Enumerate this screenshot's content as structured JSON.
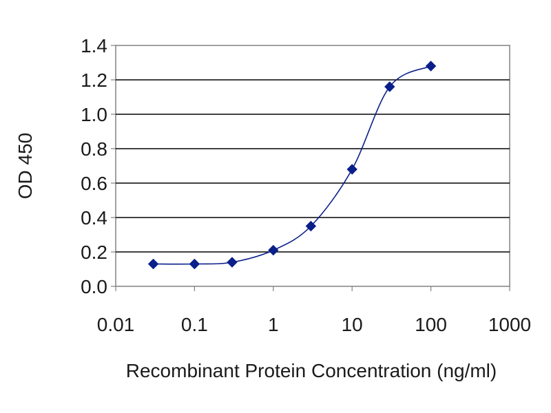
{
  "chart_data": {
    "type": "line",
    "title": "",
    "xlabel": "Recombinant Protein Concentration (ng/ml)",
    "ylabel": "OD 450",
    "x_scale": "log",
    "xlim": [
      0.01,
      1000
    ],
    "ylim": [
      0.0,
      1.4
    ],
    "x_ticks": [
      0.01,
      0.1,
      1,
      10,
      100,
      1000
    ],
    "x_tick_labels": [
      "0.01",
      "0.1",
      "1",
      "10",
      "100",
      "1000"
    ],
    "y_ticks": [
      0.0,
      0.2,
      0.4,
      0.6,
      0.8,
      1.0,
      1.2,
      1.4
    ],
    "y_tick_labels": [
      "0.0",
      "0.2",
      "0.4",
      "0.6",
      "0.8",
      "1.0",
      "1.2",
      "1.4"
    ],
    "grid": "horizontal",
    "legend": "none",
    "marker": "diamond",
    "series": [
      {
        "x": [
          0.03,
          0.1,
          0.3,
          1,
          3,
          10,
          30,
          100
        ],
        "y": [
          0.13,
          0.13,
          0.14,
          0.21,
          0.35,
          0.68,
          1.16,
          1.28
        ],
        "color": "#0a1f8a"
      }
    ]
  }
}
